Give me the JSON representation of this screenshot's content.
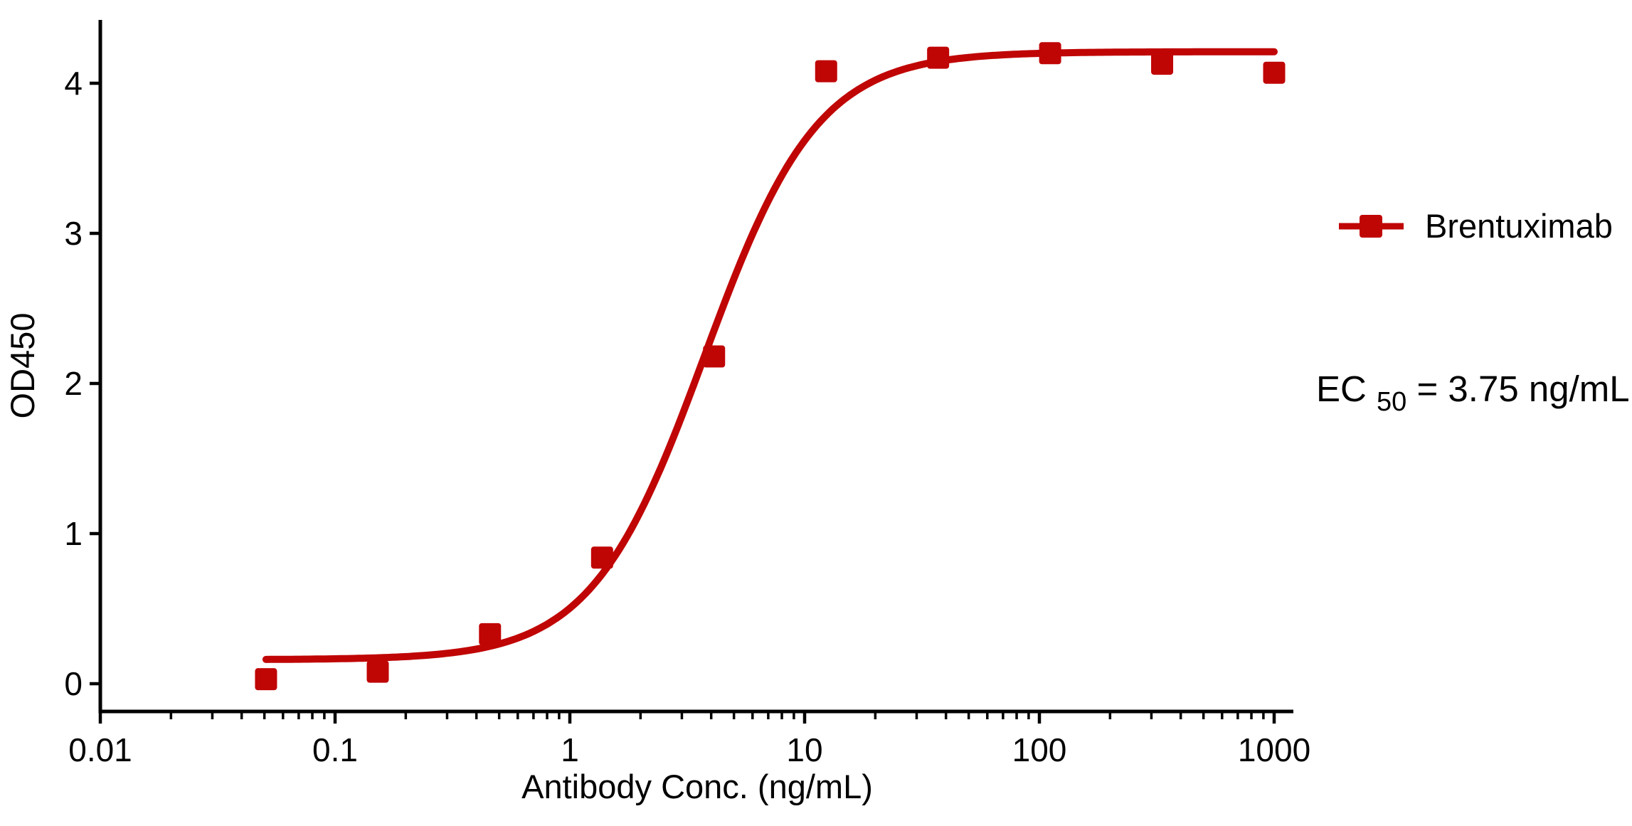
{
  "colors": {
    "series": "#C00505",
    "axis": "#000000",
    "text": "#000000",
    "background": "#ffffff"
  },
  "chart_data": {
    "type": "scatter",
    "title": "",
    "xlabel": "Antibody Conc. (ng/mL)",
    "ylabel": "OD450",
    "x_scale": "log",
    "grid": false,
    "x_ticks": [
      0.01,
      0.1,
      1,
      10,
      100,
      1000
    ],
    "x_tick_labels": [
      "0.01",
      "0.1",
      "1",
      "10",
      "100",
      "1000"
    ],
    "y_ticks": [
      0,
      1,
      2,
      3,
      4
    ],
    "y_tick_labels": [
      "0",
      "1",
      "2",
      "3",
      "4"
    ],
    "xlim_log10": [
      -2,
      3.08
    ],
    "ylim": [
      0,
      4.42
    ],
    "series": [
      {
        "name": "Brentuximab",
        "color": "#C00505",
        "marker": "square",
        "x": [
          0.0508,
          0.152,
          0.457,
          1.372,
          4.115,
          12.35,
          37.04,
          111.1,
          333.3,
          1000
        ],
        "y": [
          0.03,
          0.08,
          0.33,
          0.84,
          2.18,
          4.08,
          4.17,
          4.2,
          4.13,
          4.07
        ]
      }
    ],
    "fit_curve": {
      "model": "4PL",
      "bottom": 0.16,
      "top": 4.21,
      "ec50": 3.75,
      "hill": 1.8,
      "x_min": 0.0508,
      "x_max": 1000
    },
    "legend": {
      "position": "right",
      "label": "Brentuximab"
    },
    "annotation": {
      "prefix": "EC",
      "subscript": "50",
      "suffix": " = 3.75 ng/mL"
    }
  }
}
